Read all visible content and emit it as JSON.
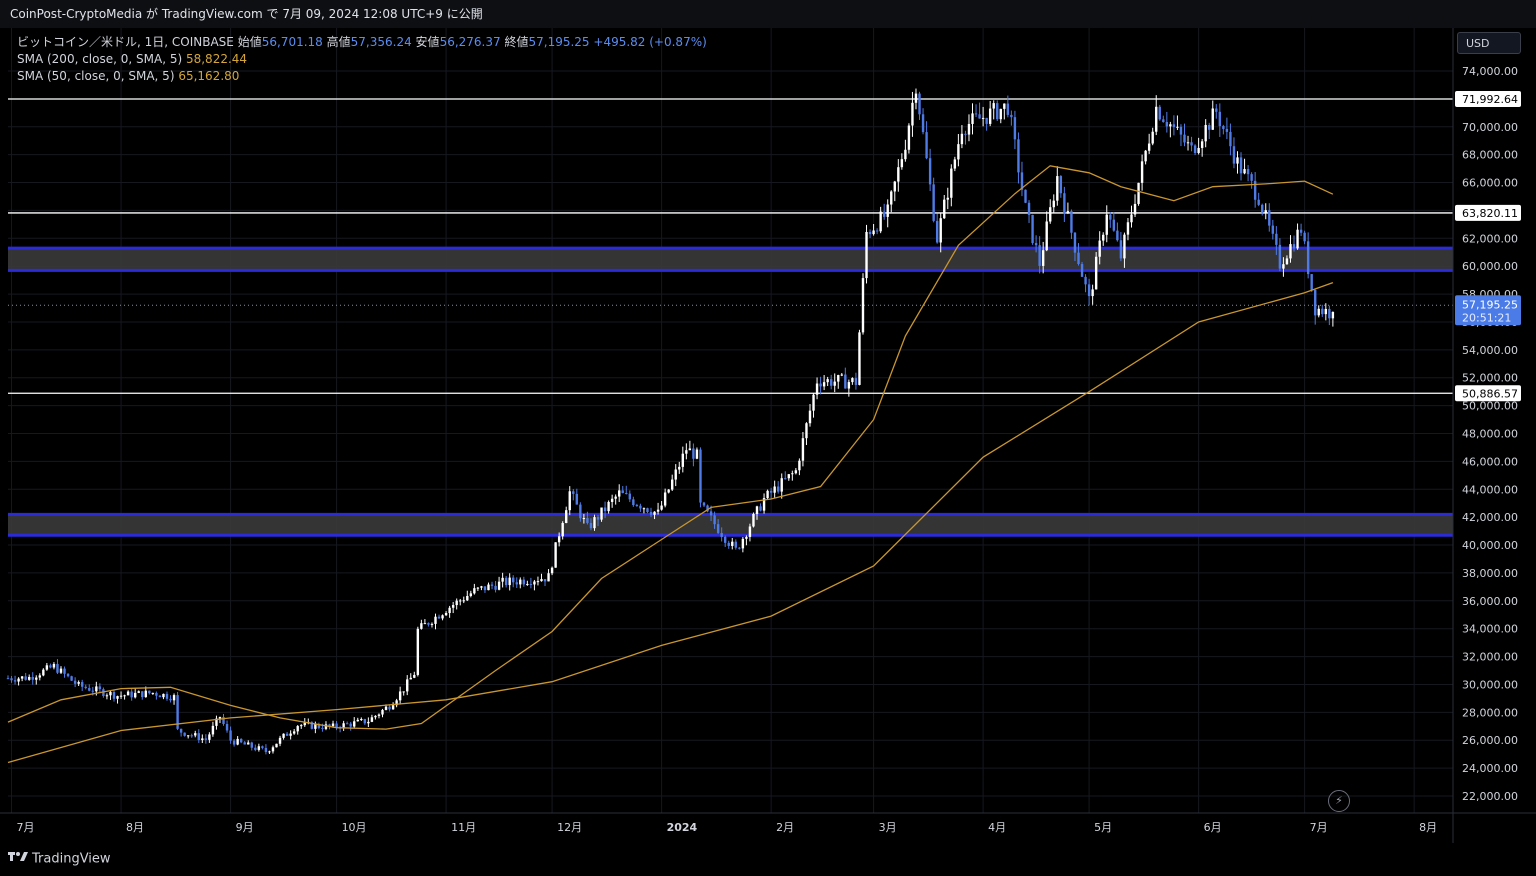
{
  "header": {
    "publish_line": "CoinPost-CryptoMedia が TradingView.com で 7月 09, 2024 12:08 UTC+9 に公開"
  },
  "legend": {
    "symbol": "ビットコイン／米ドル, 1日, COINBASE",
    "open_label": "始値",
    "open_value": "56,701.18",
    "high_label": "高値",
    "high_value": "57,356.24",
    "low_label": "安値",
    "low_value": "56,276.37",
    "close_label": "終値",
    "close_value": "57,195.25",
    "change": "+495.82 (+0.87%)",
    "sma200_label": "SMA (200, close, 0, SMA, 5)",
    "sma200_value": "58,822.44",
    "sma50_label": "SMA (50, close, 0, SMA, 5)",
    "sma50_value": "65,162.80"
  },
  "currency_button": "USD",
  "footer": {
    "brand": "TradingView"
  },
  "colors": {
    "background": "#000000",
    "candle": "#4f7be6",
    "candle_up": "#ffffff",
    "sma200": "#c9962e",
    "sma50": "#c9962e",
    "zone_border": "#2b2bd8",
    "zone_fill": "#3a3a3a",
    "hline": "#ffffff",
    "price_badge": "#4a7be6"
  },
  "chart_data": {
    "type": "candlestick",
    "title": "",
    "y_axis_position": "right",
    "ylim": [
      20500,
      76000
    ],
    "y_ticks": [
      "74,000.00",
      "72,000.00",
      "70,000.00",
      "68,000.00",
      "66,000.00",
      "64,000.00",
      "62,000.00",
      "60,000.00",
      "58,000.00",
      "56,000.00",
      "54,000.00",
      "52,000.00",
      "50,000.00",
      "48,000.00",
      "46,000.00",
      "44,000.00",
      "42,000.00",
      "40,000.00",
      "38,000.00",
      "36,000.00",
      "34,000.00",
      "32,000.00",
      "30,000.00",
      "28,000.00",
      "26,000.00",
      "24,000.00",
      "22,000.00"
    ],
    "y_tick_values": [
      74000,
      72000,
      70000,
      68000,
      66000,
      64000,
      62000,
      60000,
      58000,
      56000,
      54000,
      52000,
      50000,
      48000,
      46000,
      44000,
      42000,
      40000,
      38000,
      36000,
      34000,
      32000,
      30000,
      28000,
      26000,
      24000,
      22000
    ],
    "x_start": "2023-06-30",
    "x_end": "2024-08-12",
    "x_ticks": [
      {
        "label": "7月",
        "date": "2023-07-01"
      },
      {
        "label": "8月",
        "date": "2023-08-01"
      },
      {
        "label": "9月",
        "date": "2023-09-01"
      },
      {
        "label": "10月",
        "date": "2023-10-01"
      },
      {
        "label": "11月",
        "date": "2023-11-01"
      },
      {
        "label": "12月",
        "date": "2023-12-01"
      },
      {
        "label": "2024",
        "date": "2024-01-01"
      },
      {
        "label": "2月",
        "date": "2024-02-01"
      },
      {
        "label": "3月",
        "date": "2024-03-01"
      },
      {
        "label": "4月",
        "date": "2024-04-01"
      },
      {
        "label": "5月",
        "date": "2024-05-01"
      },
      {
        "label": "6月",
        "date": "2024-06-01"
      },
      {
        "label": "7月",
        "date": "2024-07-01"
      },
      {
        "label": "8月",
        "date": "2024-08-01"
      }
    ],
    "horizontal_lines": [
      {
        "value": 71992.64,
        "label": "71,992.64"
      },
      {
        "value": 63820.11,
        "label": "63,820.11"
      },
      {
        "value": 50886.57,
        "label": "50,886.57"
      }
    ],
    "zones": [
      {
        "low": 59700,
        "high": 61300
      },
      {
        "low": 40700,
        "high": 42200
      }
    ],
    "last_price": {
      "value": 57195.25,
      "label": "57,195.25",
      "countdown": "20:51:21"
    },
    "close_path": [
      [
        "2023-06-30",
        30450
      ],
      [
        "2023-07-06",
        30500
      ],
      [
        "2023-07-13",
        31300
      ],
      [
        "2023-07-20",
        29900
      ],
      [
        "2023-07-31",
        29200
      ],
      [
        "2023-08-10",
        29400
      ],
      [
        "2023-08-16",
        29100
      ],
      [
        "2023-08-17",
        26700
      ],
      [
        "2023-08-25",
        26050
      ],
      [
        "2023-08-29",
        27700
      ],
      [
        "2023-09-01",
        26000
      ],
      [
        "2023-09-11",
        25200
      ],
      [
        "2023-09-20",
        27100
      ],
      [
        "2023-09-30",
        26950
      ],
      [
        "2023-10-10",
        27400
      ],
      [
        "2023-10-16",
        28500
      ],
      [
        "2023-10-20",
        29700
      ],
      [
        "2023-10-23",
        30800
      ],
      [
        "2023-10-24",
        33900
      ],
      [
        "2023-11-01",
        35400
      ],
      [
        "2023-11-09",
        36700
      ],
      [
        "2023-11-17",
        37300
      ],
      [
        "2023-11-30",
        37700
      ],
      [
        "2023-12-04",
        41900
      ],
      [
        "2023-12-06",
        43800
      ],
      [
        "2023-12-11",
        41200
      ],
      [
        "2023-12-20",
        43700
      ],
      [
        "2023-12-31",
        42250
      ],
      [
        "2024-01-08",
        46900
      ],
      [
        "2024-01-11",
        46400
      ],
      [
        "2024-01-12",
        42800
      ],
      [
        "2024-01-22",
        39600
      ],
      [
        "2024-01-30",
        43300
      ],
      [
        "2024-02-08",
        45300
      ],
      [
        "2024-02-14",
        51800
      ],
      [
        "2024-02-25",
        51700
      ],
      [
        "2024-02-28",
        62400
      ],
      [
        "2024-03-05",
        63800
      ],
      [
        "2024-03-10",
        68900
      ],
      [
        "2024-03-13",
        73100
      ],
      [
        "2024-03-19",
        62000
      ],
      [
        "2024-03-26",
        70000
      ],
      [
        "2024-04-08",
        71500
      ],
      [
        "2024-04-13",
        64100
      ],
      [
        "2024-04-17",
        60200
      ],
      [
        "2024-04-22",
        66400
      ],
      [
        "2024-05-01",
        57500
      ],
      [
        "2024-05-06",
        64000
      ],
      [
        "2024-05-10",
        60700
      ],
      [
        "2024-05-15",
        66000
      ],
      [
        "2024-05-20",
        71400
      ],
      [
        "2024-05-30",
        68300
      ],
      [
        "2024-06-06",
        71100
      ],
      [
        "2024-06-12",
        67400
      ],
      [
        "2024-06-18",
        65000
      ],
      [
        "2024-06-24",
        60200
      ],
      [
        "2024-06-30",
        62700
      ],
      [
        "2024-07-04",
        57000
      ],
      [
        "2024-07-08",
        56701
      ],
      [
        "2024-07-09",
        57195
      ]
    ],
    "sma200_path": [
      [
        "2023-06-30",
        24400
      ],
      [
        "2023-08-01",
        26700
      ],
      [
        "2023-09-01",
        27600
      ],
      [
        "2023-10-01",
        28200
      ],
      [
        "2023-11-01",
        28900
      ],
      [
        "2023-12-01",
        30200
      ],
      [
        "2024-01-01",
        32800
      ],
      [
        "2024-02-01",
        34900
      ],
      [
        "2024-03-01",
        38500
      ],
      [
        "2024-04-01",
        46300
      ],
      [
        "2024-05-01",
        51000
      ],
      [
        "2024-06-01",
        56000
      ],
      [
        "2024-07-01",
        58100
      ],
      [
        "2024-07-09",
        58822
      ]
    ],
    "sma50_path": [
      [
        "2023-06-30",
        27300
      ],
      [
        "2023-07-15",
        28900
      ],
      [
        "2023-08-01",
        29700
      ],
      [
        "2023-08-15",
        29800
      ],
      [
        "2023-09-01",
        28500
      ],
      [
        "2023-09-15",
        27600
      ],
      [
        "2023-10-01",
        26900
      ],
      [
        "2023-10-15",
        26800
      ],
      [
        "2023-10-25",
        27200
      ],
      [
        "2023-11-15",
        31000
      ],
      [
        "2023-12-01",
        33800
      ],
      [
        "2023-12-15",
        37600
      ],
      [
        "2024-01-01",
        40400
      ],
      [
        "2024-01-15",
        42700
      ],
      [
        "2024-02-01",
        43300
      ],
      [
        "2024-02-15",
        44200
      ],
      [
        "2024-03-01",
        49000
      ],
      [
        "2024-03-10",
        55000
      ],
      [
        "2024-03-25",
        61500
      ],
      [
        "2024-04-10",
        65200
      ],
      [
        "2024-04-20",
        67200
      ],
      [
        "2024-05-01",
        66700
      ],
      [
        "2024-05-10",
        65700
      ],
      [
        "2024-05-25",
        64700
      ],
      [
        "2024-06-05",
        65700
      ],
      [
        "2024-06-20",
        65900
      ],
      [
        "2024-07-01",
        66100
      ],
      [
        "2024-07-09",
        65163
      ]
    ]
  }
}
